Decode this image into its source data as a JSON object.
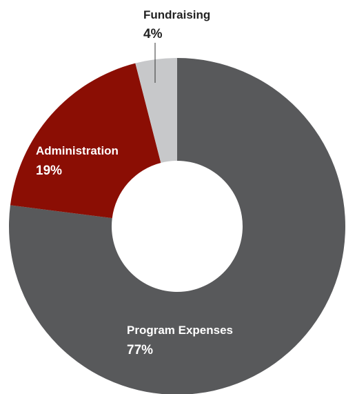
{
  "chart_data": {
    "type": "pie",
    "donut": true,
    "title": "",
    "categories": [
      "Program Expenses",
      "Administration",
      "Fundraising"
    ],
    "values": [
      77,
      19,
      4
    ],
    "value_labels": [
      "77%",
      "19%",
      "4%"
    ],
    "colors": [
      "#58595b",
      "#8b0e04",
      "#c7c8ca"
    ],
    "legend": "none",
    "labels": {
      "program": {
        "name": "Program Expenses",
        "pct": "77%"
      },
      "admin": {
        "name": "Administration",
        "pct": "19%"
      },
      "fund": {
        "name": "Fundraising",
        "pct": "4%"
      }
    }
  }
}
